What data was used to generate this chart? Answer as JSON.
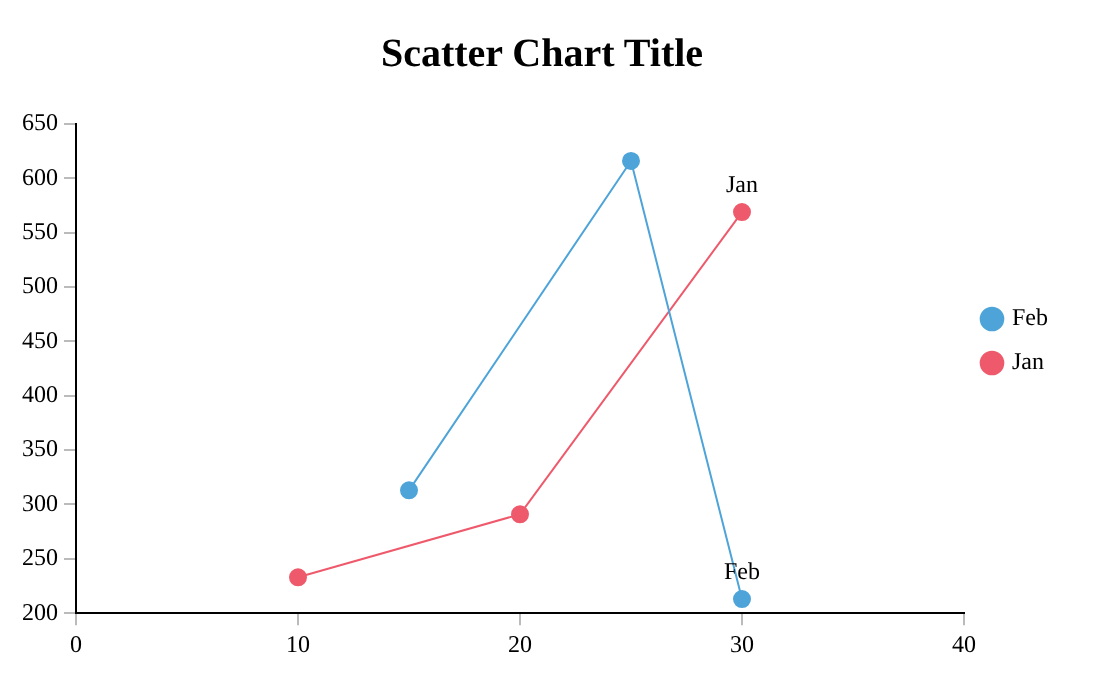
{
  "chart_data": {
    "type": "line",
    "title": "Scatter Chart Title",
    "series": [
      {
        "name": "Feb",
        "color": "#4ea4d9",
        "x": [
          15,
          25,
          30
        ],
        "values": [
          313,
          616,
          213
        ]
      },
      {
        "name": "Jan",
        "color": "#ee5a6c",
        "x": [
          10,
          20,
          30
        ],
        "values": [
          233,
          291,
          569
        ]
      }
    ],
    "annotations": [
      {
        "text": "Jan",
        "x": 30,
        "y": 569
      },
      {
        "text": "Feb",
        "x": 30,
        "y": 213
      }
    ],
    "xlim": [
      0,
      40
    ],
    "xticks": [
      0,
      10,
      20,
      30,
      40
    ],
    "ylim": [
      200,
      650
    ],
    "yticks": [
      200,
      250,
      300,
      350,
      400,
      450,
      500,
      550,
      600,
      650
    ],
    "grid": false,
    "legend": "right",
    "marker": "circle",
    "line_style": "solid"
  }
}
